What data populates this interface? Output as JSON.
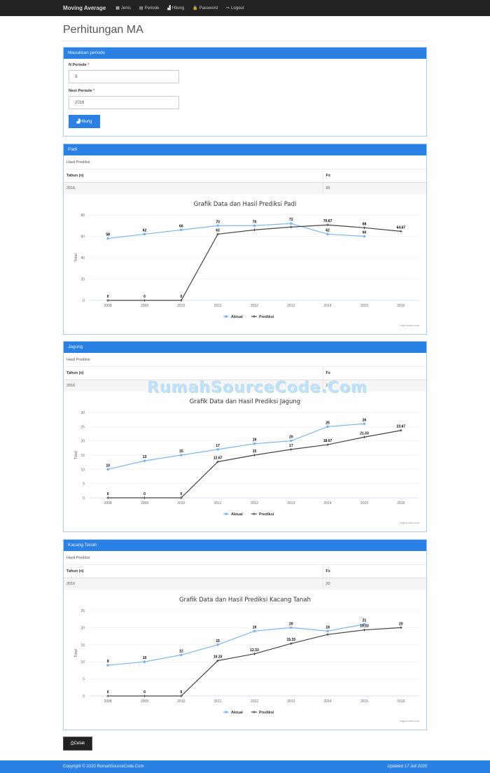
{
  "navbar": {
    "brand": "Moving Average",
    "items": [
      {
        "label": "Jenis",
        "icon": "grid-icon",
        "glyph": "▦"
      },
      {
        "label": "Periode",
        "icon": "calendar-icon",
        "glyph": "▤"
      },
      {
        "label": "Hitung",
        "icon": "bar-chart-icon",
        "glyph": "▟"
      },
      {
        "label": "Password",
        "icon": "lock-icon",
        "glyph": "🔒"
      },
      {
        "label": "Logout",
        "icon": "logout-icon",
        "glyph": "⇨"
      }
    ]
  },
  "page": {
    "title": "Perhitungan MA"
  },
  "form": {
    "heading": "Masukkan periode",
    "n_periode_label": "N Periode",
    "n_periode_value": "3",
    "next_periode_label": "Next Periode",
    "next_periode_value": "2016",
    "required_mark": "*",
    "submit_label": "Hitung"
  },
  "results": [
    {
      "name": "Padi",
      "hasil_label": "Hasil Prediksi:",
      "col_year": "Tahun (n)",
      "col_fx": "Fx",
      "year": "2016",
      "fx": "65"
    },
    {
      "name": "Jagung",
      "hasil_label": "Hasil Prediksi:",
      "col_year": "Tahun (n)",
      "col_fx": "Fx",
      "year": "2016",
      "fx": "24"
    },
    {
      "name": "Kacang Tanah",
      "hasil_label": "Hasil Prediksi:",
      "col_year": "Tahun (n)",
      "col_fx": "Fx",
      "year": "2016",
      "fx": "20"
    }
  ],
  "chart_data": [
    {
      "type": "line",
      "title": "Grafik Data dan Hasil Prediksi Padi",
      "xlabel": "",
      "ylabel": "Total",
      "ylim": [
        0,
        80
      ],
      "yticks": [
        0,
        20,
        40,
        60,
        80
      ],
      "categories": [
        "2008",
        "2009",
        "2010",
        "2011",
        "2012",
        "2013",
        "2014",
        "2015",
        "2016"
      ],
      "series": [
        {
          "name": "Aktual",
          "color": "#7cb5ec",
          "values": [
            58,
            62,
            66,
            70,
            70,
            72,
            62,
            60,
            null
          ],
          "labels": [
            "58",
            "62",
            "66",
            "70",
            "70",
            "72",
            "62",
            "60",
            ""
          ]
        },
        {
          "name": "Prediksi",
          "color": "#434348",
          "values": [
            0,
            0,
            0,
            62,
            66,
            68.67,
            70.67,
            68,
            64.67
          ],
          "labels": [
            "0",
            "0",
            "0",
            "62",
            "",
            "",
            "70.67",
            "68",
            "64.67"
          ]
        }
      ],
      "grid": true,
      "legend_position": "bottom",
      "credit": "Highcharts.com"
    },
    {
      "type": "line",
      "title": "Grafik Data dan Hasil Prediksi Jagung",
      "xlabel": "",
      "ylabel": "Total",
      "ylim": [
        0,
        30
      ],
      "yticks": [
        0,
        5,
        10,
        15,
        20,
        25,
        30
      ],
      "categories": [
        "2008",
        "2009",
        "2010",
        "2011",
        "2012",
        "2013",
        "2014",
        "2015",
        "2016"
      ],
      "series": [
        {
          "name": "Aktual",
          "color": "#7cb5ec",
          "values": [
            10,
            13,
            15,
            17,
            19,
            20,
            25,
            26,
            null
          ],
          "labels": [
            "10",
            "13",
            "15",
            "17",
            "19",
            "20",
            "25",
            "26",
            ""
          ]
        },
        {
          "name": "Prediksi",
          "color": "#434348",
          "values": [
            0,
            0,
            0,
            12.67,
            15,
            17,
            18.67,
            21.33,
            23.67
          ],
          "labels": [
            "0",
            "0",
            "0",
            "12.67",
            "15",
            "17",
            "18.67",
            "21.33",
            "23.67"
          ]
        }
      ],
      "grid": true,
      "legend_position": "bottom",
      "credit": "Highcharts.com"
    },
    {
      "type": "line",
      "title": "Grafik Data dan Hasil Prediksi Kacang Tanah",
      "xlabel": "",
      "ylabel": "Total",
      "ylim": [
        0,
        25
      ],
      "yticks": [
        0,
        5,
        10,
        15,
        20,
        25
      ],
      "categories": [
        "2008",
        "2009",
        "2010",
        "2011",
        "2012",
        "2013",
        "2014",
        "2015",
        "2016"
      ],
      "series": [
        {
          "name": "Aktual",
          "color": "#7cb5ec",
          "values": [
            9,
            10,
            12,
            15,
            19,
            20,
            19,
            21,
            null
          ],
          "labels": [
            "9",
            "10",
            "12",
            "15",
            "19",
            "20",
            "19",
            "21",
            ""
          ]
        },
        {
          "name": "Prediksi",
          "color": "#434348",
          "values": [
            0,
            0,
            0,
            10.33,
            12.33,
            15.33,
            18,
            19.33,
            20
          ],
          "labels": [
            "0",
            "0",
            "0",
            "10.33",
            "12.33",
            "15.33",
            "",
            "19.33",
            "20"
          ]
        }
      ],
      "grid": true,
      "legend_position": "bottom",
      "credit": "Highcharts.com"
    }
  ],
  "actions": {
    "print_label": "Cetak"
  },
  "footer": {
    "copyright": "Copyright © 2020 RumahSourceCode.Com",
    "updated": "Updated 17 Juli 2020"
  },
  "watermark": "RumahSourceCode.Com"
}
